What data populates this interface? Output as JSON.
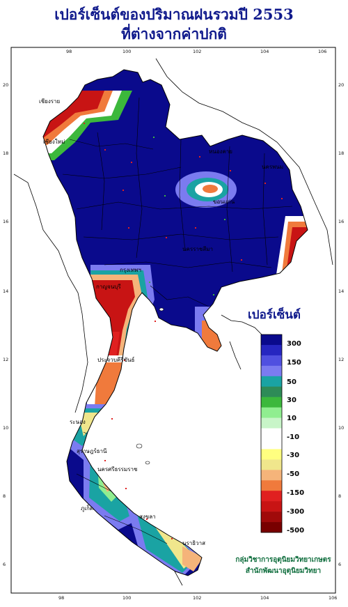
{
  "title": {
    "line1": "เปอร์เซ็นต์ของปริมาณฝนรวมปี 2553",
    "line2": "ที่ต่างจากค่าปกติ"
  },
  "axes": {
    "lon_ticks": [
      "98",
      "100",
      "102",
      "104",
      "106"
    ],
    "lat_ticks": [
      "20",
      "18",
      "16",
      "14",
      "12",
      "10",
      "8",
      "6"
    ]
  },
  "legend": {
    "title": "เปอร์เซ็นต์",
    "colors": [
      "#0a0a8c",
      "#2626c0",
      "#5050e0",
      "#7b7bf0",
      "#1aa3a3",
      "#2e8b57",
      "#3cb83c",
      "#90ee90",
      "#c8f5c8",
      "#ffffff",
      "#ffffff",
      "#ffff80",
      "#f0e68c",
      "#f5b47a",
      "#f07a3c",
      "#e02020",
      "#c81414",
      "#a00a0a",
      "#780000"
    ],
    "labels": [
      "300",
      "150",
      "50",
      "30",
      "10",
      "-10",
      "-30",
      "-50",
      "-150",
      "-300",
      "-500"
    ]
  },
  "cities": [
    {
      "name": "เชียงราย"
    },
    {
      "name": "เชียงใหม่"
    },
    {
      "name": "หนองคาย"
    },
    {
      "name": "นครพนม"
    },
    {
      "name": "ขอนแก่น"
    },
    {
      "name": "นครราชสีมา"
    },
    {
      "name": "กรุงเทพฯ"
    },
    {
      "name": "กาญจนบุรี"
    },
    {
      "name": "ประจวบคีรีขันธ์"
    },
    {
      "name": "ระนอง"
    },
    {
      "name": "สุราษฎร์ธานี"
    },
    {
      "name": "นครศรีธรรมราช"
    },
    {
      "name": "ภูเก็ต"
    },
    {
      "name": "สงขลา"
    },
    {
      "name": "นราธิวาส"
    }
  ],
  "credit": {
    "line1": "กลุ่มวิชาการอุตุนิยมวิทยาเกษตร",
    "line2": "สำนักพัฒนาอุตุนิยมวิทยา"
  }
}
